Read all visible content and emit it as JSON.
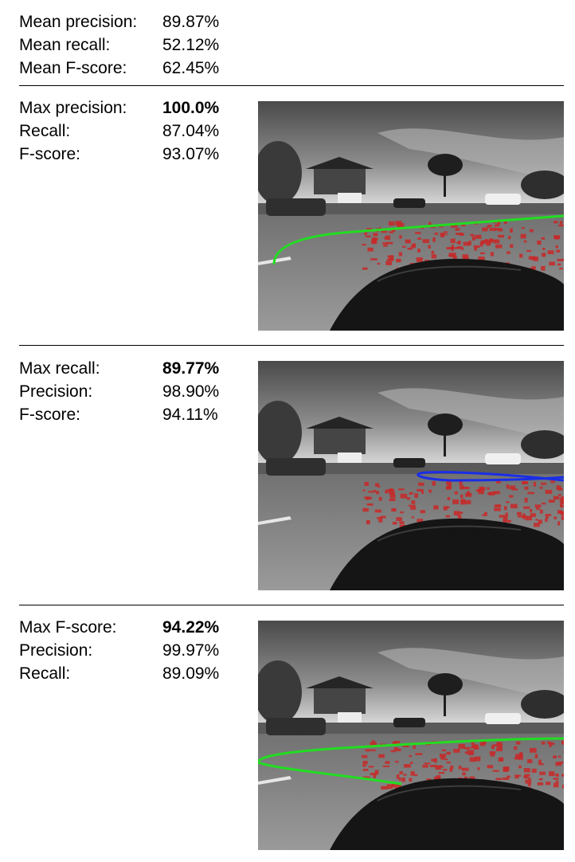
{
  "summary": {
    "mean_precision_label": "Mean precision:",
    "mean_precision_value": "89.87%",
    "mean_recall_label": "Mean recall:",
    "mean_recall_value": "52.12%",
    "mean_fscore_label": "Mean F-score:",
    "mean_fscore_value": "62.45%"
  },
  "panels": [
    {
      "rows": [
        {
          "label": "Max precision:",
          "value": "100.0%"
        },
        {
          "label": "Recall:",
          "value": "87.04%"
        },
        {
          "label": "F-score:",
          "value": "93.07%"
        }
      ],
      "curve_color": "#22dd22"
    },
    {
      "rows": [
        {
          "label": "Max recall:",
          "value": "89.77%"
        },
        {
          "label": "Precision:",
          "value": "98.90%"
        },
        {
          "label": "F-score:",
          "value": "94.11%"
        }
      ],
      "curve_color": "#1a2ee6"
    },
    {
      "rows": [
        {
          "label": "Max F-score:",
          "value": "94.22%"
        },
        {
          "label": "Precision:",
          "value": "99.97%"
        },
        {
          "label": "Recall:",
          "value": "89.09%"
        }
      ],
      "curve_color": "#22dd22"
    }
  ],
  "colors": {
    "detection_overlay": "#c82828",
    "text": "#000000"
  }
}
